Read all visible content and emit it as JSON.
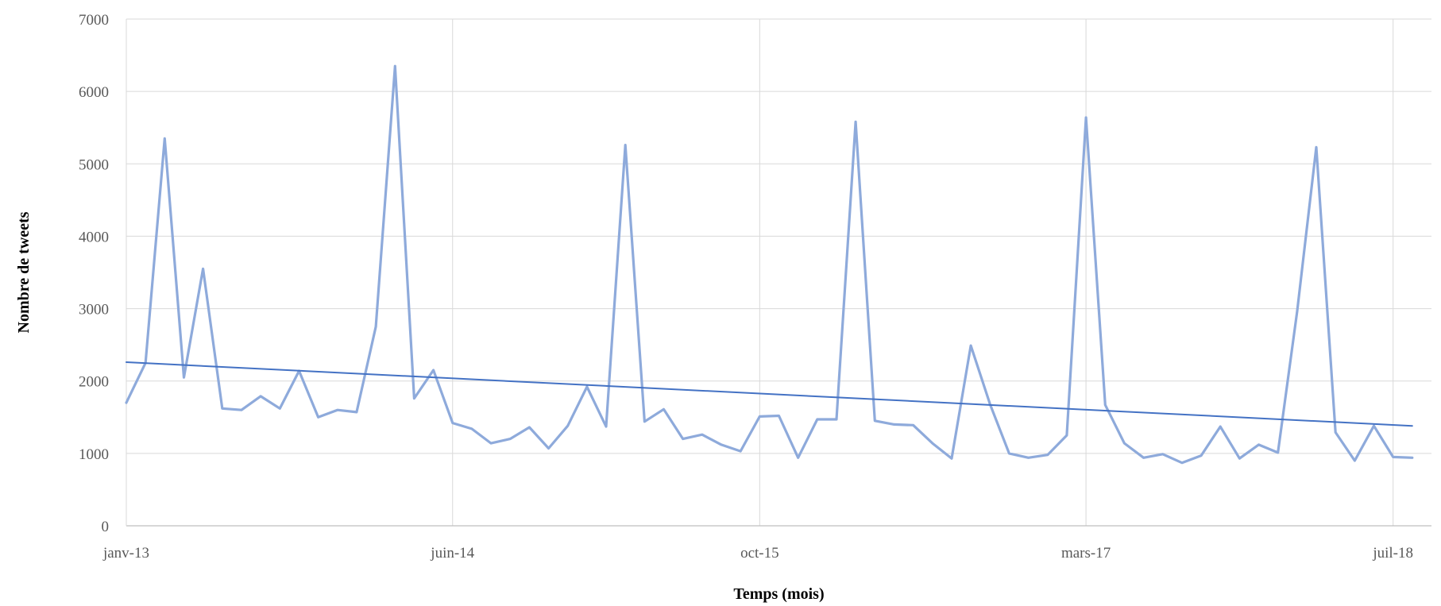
{
  "chart_data": {
    "type": "line",
    "title": "",
    "xlabel": "Temps (mois)",
    "ylabel": "Nombre de tweets",
    "ylim": [
      0,
      7000
    ],
    "yticks": [
      0,
      1000,
      2000,
      3000,
      4000,
      5000,
      6000,
      7000
    ],
    "xlim": [
      "2013-01",
      "2018-09"
    ],
    "xticks": [
      {
        "label": "janv-13",
        "month": "2013-01"
      },
      {
        "label": "juin-14",
        "month": "2014-06"
      },
      {
        "label": "oct-15",
        "month": "2015-10"
      },
      {
        "label": "mars-17",
        "month": "2017-03"
      },
      {
        "label": "juil-18",
        "month": "2018-07"
      }
    ],
    "grid": true,
    "series": [
      {
        "color": "#8eaadb",
        "x": [
          "2013-01",
          "2013-02",
          "2013-03",
          "2013-04",
          "2013-05",
          "2013-06",
          "2013-07",
          "2013-08",
          "2013-09",
          "2013-10",
          "2013-11",
          "2013-12",
          "2014-01",
          "2014-02",
          "2014-03",
          "2014-04",
          "2014-05",
          "2014-06",
          "2014-07",
          "2014-08",
          "2014-09",
          "2014-10",
          "2014-11",
          "2014-12",
          "2015-01",
          "2015-02",
          "2015-03",
          "2015-04",
          "2015-05",
          "2015-06",
          "2015-07",
          "2015-08",
          "2015-09",
          "2015-10",
          "2015-11",
          "2015-12",
          "2016-01",
          "2016-02",
          "2016-03",
          "2016-04",
          "2016-05",
          "2016-06",
          "2016-07",
          "2016-08",
          "2016-09",
          "2016-10",
          "2016-11",
          "2016-12",
          "2017-01",
          "2017-02",
          "2017-03",
          "2017-04",
          "2017-05",
          "2017-06",
          "2017-07",
          "2017-08",
          "2017-09",
          "2017-10",
          "2017-11",
          "2017-12",
          "2018-01",
          "2018-02",
          "2018-03",
          "2018-04",
          "2018-05",
          "2018-06",
          "2018-07",
          "2018-08"
        ],
        "values": [
          1700,
          2250,
          5350,
          2050,
          3550,
          1620,
          1600,
          1790,
          1620,
          2140,
          1500,
          1600,
          1570,
          2750,
          6350,
          1760,
          2150,
          1420,
          1340,
          1140,
          1200,
          1360,
          1070,
          1380,
          1920,
          1370,
          5260,
          1440,
          1610,
          1200,
          1260,
          1120,
          1030,
          1510,
          1520,
          940,
          1470,
          1470,
          5580,
          1450,
          1400,
          1390,
          1140,
          930,
          2490,
          1680,
          1000,
          940,
          980,
          1250,
          5640,
          1670,
          1140,
          940,
          990,
          870,
          970,
          1370,
          930,
          1120,
          1010,
          2960,
          5230,
          1290,
          900,
          1380,
          950,
          940
        ]
      },
      {
        "type": "linear-trend",
        "color": "#4472c4",
        "x": [
          "2013-01",
          "2018-08"
        ],
        "values": [
          2260,
          1380
        ]
      }
    ]
  }
}
